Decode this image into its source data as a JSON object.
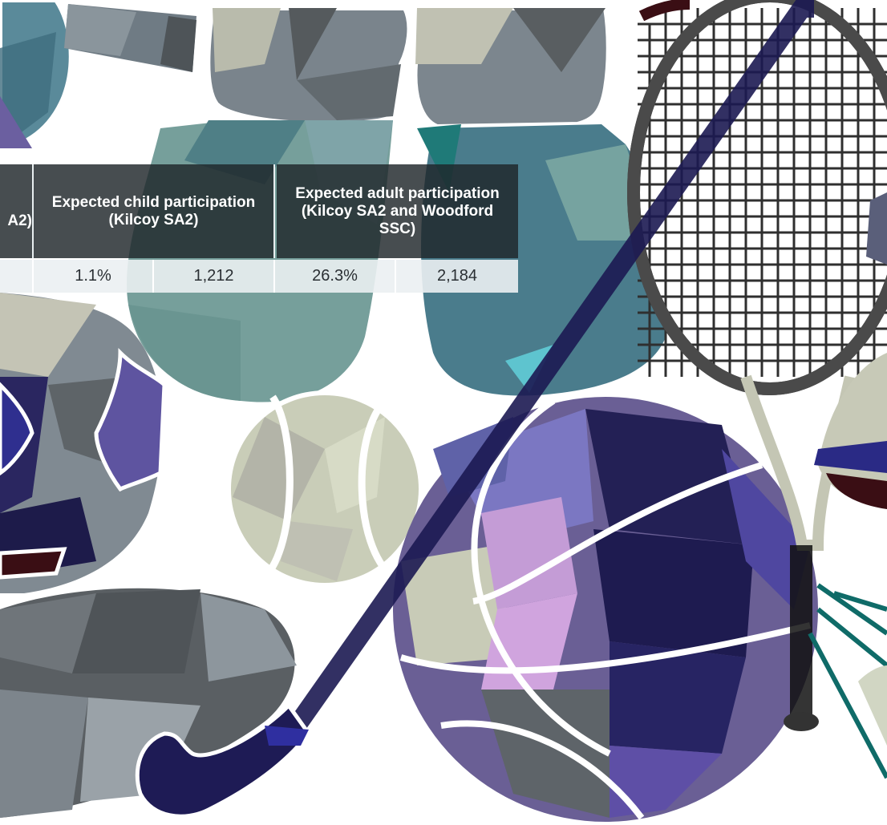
{
  "table": {
    "header_cut": "A2)",
    "headers": [
      "Expected child participation (Kilcoy SA2)",
      "Expected adult participation (Kilcoy SA2 and Woodford SSC)"
    ],
    "row": [
      "1.1%",
      "1,212",
      "26.3%",
      "2,184"
    ]
  },
  "colors": {
    "header_bg": "#1e262a",
    "row_bg": "#ebf0f2",
    "teal": "#4a8a8a",
    "navy": "#1f1b4d",
    "purple": "#5c4f98",
    "grey": "#6b7580",
    "sage": "#cdd2bd"
  }
}
